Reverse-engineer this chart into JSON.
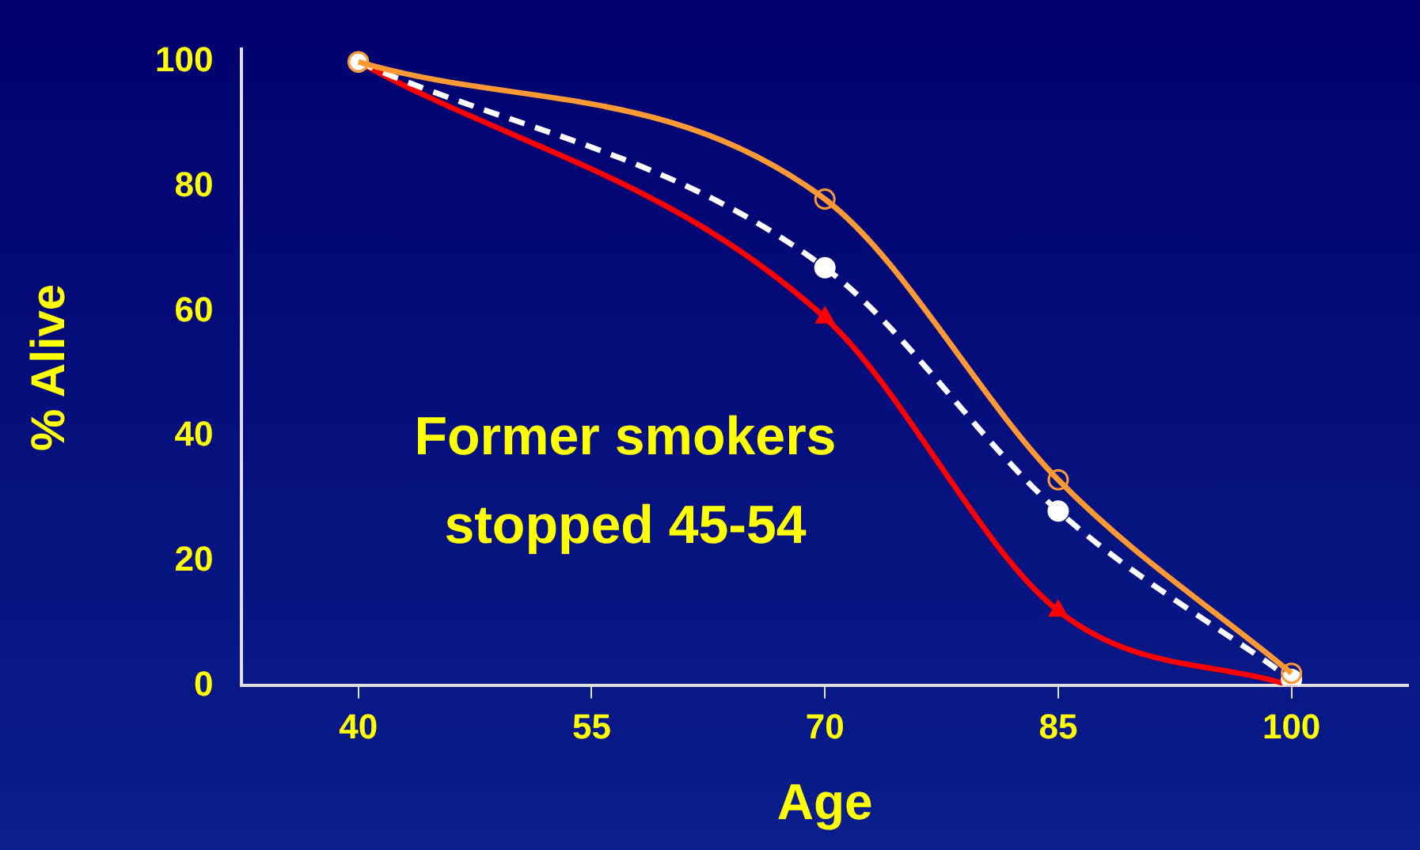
{
  "chart_data": {
    "type": "line",
    "xlabel": "Age",
    "ylabel": "% Alive",
    "x": [
      40,
      70,
      85,
      100
    ],
    "series": [
      {
        "color": "#ff9933",
        "values": [
          100,
          78,
          33,
          2
        ],
        "marker": "circle",
        "line_style": "solid"
      },
      {
        "color": "#ffffff",
        "values": [
          100,
          67,
          28,
          1
        ],
        "marker": "circle",
        "line_style": "dashed"
      },
      {
        "color": "#ff0000",
        "values": [
          100,
          59,
          12,
          0
        ],
        "marker": "triangle",
        "line_style": "solid"
      }
    ],
    "xlim": [
      32.5,
      107.5
    ],
    "xticks": [
      40,
      55,
      70,
      85,
      100
    ],
    "ylim": [
      0,
      102
    ],
    "yticks": [
      0,
      20,
      40,
      60,
      80,
      100
    ],
    "grid": false,
    "legend": false,
    "annotations": [
      "Former smokers stopped 45-54"
    ]
  }
}
